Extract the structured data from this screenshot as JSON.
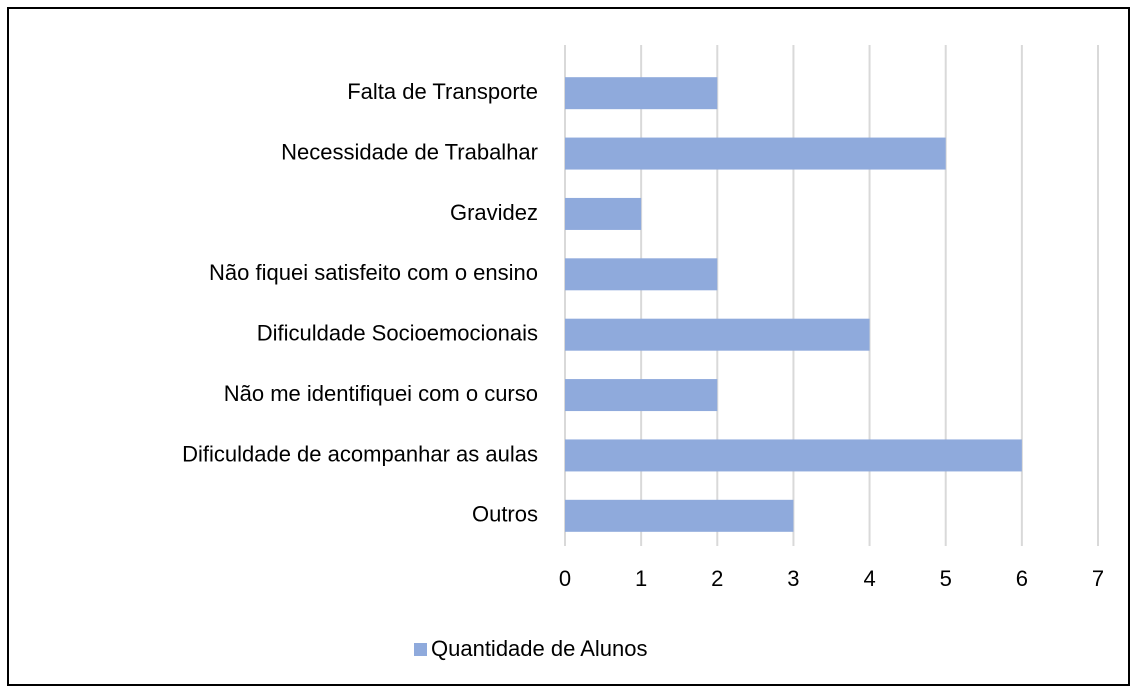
{
  "chart_data": {
    "type": "bar",
    "orientation": "horizontal",
    "categories": [
      "Falta de Transporte",
      "Necessidade de Trabalhar",
      "Gravidez",
      "Não fiquei satisfeito com o ensino",
      "Dificuldade Socioemocionais",
      "Não me identifiquei com o curso",
      "Dificuldade de acompanhar as aulas",
      "Outros"
    ],
    "series": [
      {
        "name": "Quantidade de Alunos",
        "color": "#8faadc",
        "values": [
          2,
          5,
          1,
          2,
          4,
          2,
          6,
          3
        ]
      }
    ],
    "xlim": [
      0,
      7
    ],
    "xticks": [
      0,
      1,
      2,
      3,
      4,
      5,
      6,
      7
    ],
    "grid": true,
    "legend": "bottom"
  }
}
